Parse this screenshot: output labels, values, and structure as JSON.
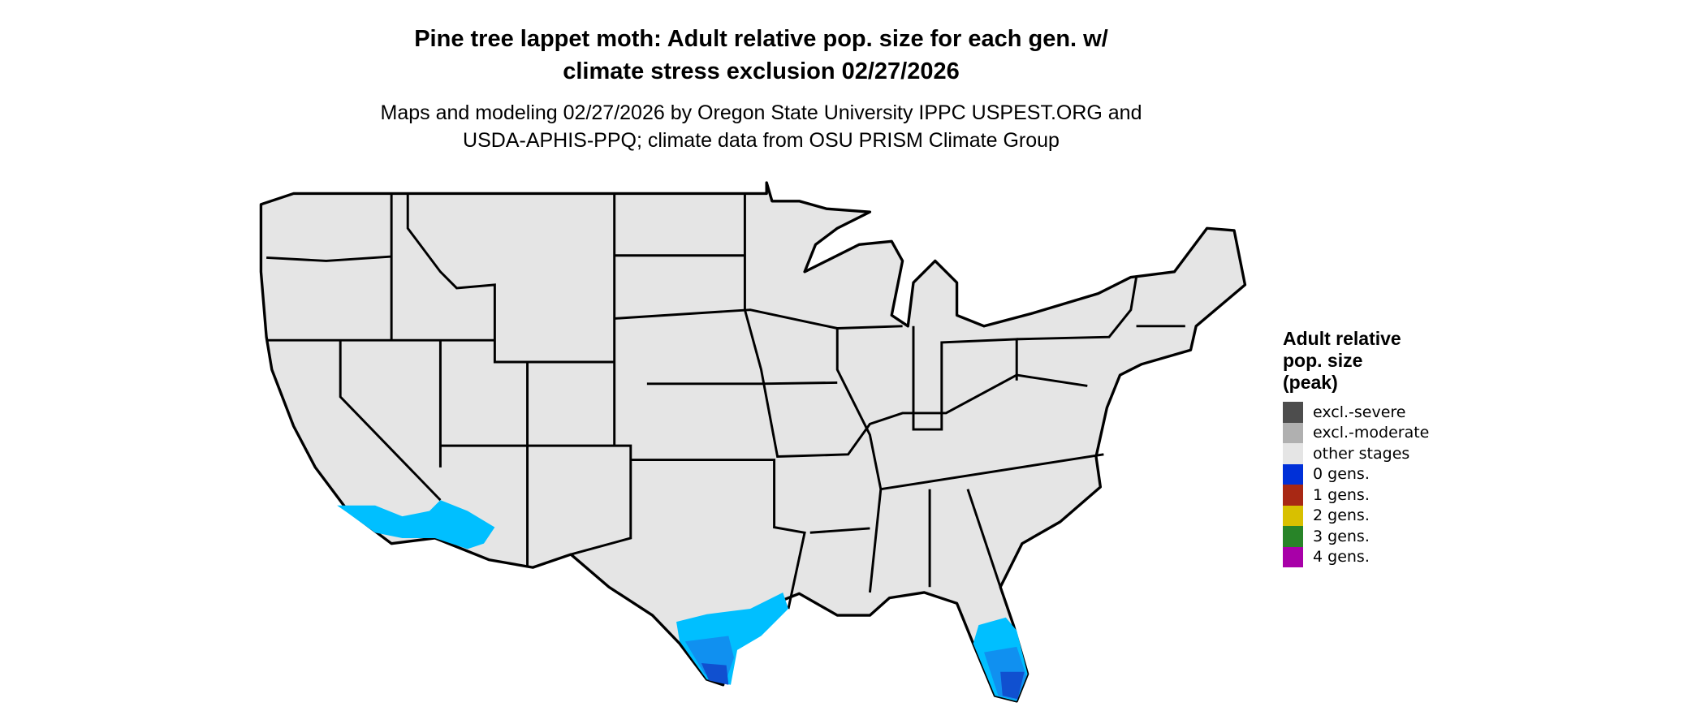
{
  "title": "Pine tree lappet moth: Adult relative pop. size for each gen. w/\nclimate stress exclusion 02/27/2026",
  "title_lines": [
    "Pine tree lappet moth: Adult relative pop. size for each gen. w/",
    "climate stress exclusion 02/27/2026"
  ],
  "subtitle_lines": [
    "Maps and modeling 02/27/2026 by Oregon State University IPPC USPEST.ORG and",
    "USDA-APHIS-PPQ; climate data from OSU PRISM Climate Group"
  ],
  "legend": {
    "title_lines": [
      "Adult relative",
      "pop. size",
      "(peak)"
    ],
    "items": [
      {
        "label": "excl.-severe",
        "color": "#4d4d4d"
      },
      {
        "label": "excl.-moderate",
        "color": "#b0b0b0"
      },
      {
        "label": "other stages",
        "color": "#e5e5e5"
      },
      {
        "label": "0 gens.",
        "color": "#0030d8"
      },
      {
        "label": "1 gens.",
        "color": "#a82814"
      },
      {
        "label": "2 gens.",
        "color": "#d8c000"
      },
      {
        "label": "3 gens.",
        "color": "#288428"
      },
      {
        "label": "4 gens.",
        "color": "#a800a8"
      }
    ]
  },
  "map_colors": {
    "land": "#e5e5e5",
    "border": "#000000",
    "pop_light": "#00bfff",
    "pop_medium": "#1090f0",
    "pop_dark": "#1050d0"
  }
}
